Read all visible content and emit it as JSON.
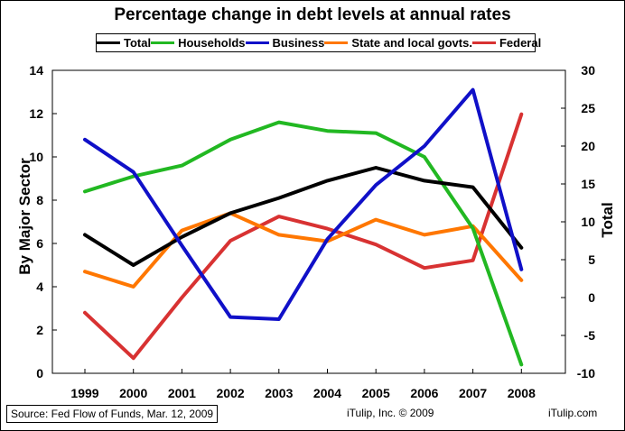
{
  "chart_data": {
    "type": "line",
    "title": "Percentage change in debt levels at annual rates",
    "ylabel_left": "By Major Sector",
    "ylabel_right": "Total",
    "ylim_left": [
      0,
      14
    ],
    "ylim_right": [
      -10,
      30
    ],
    "yticks_left": [
      "0",
      "2",
      "4",
      "6",
      "8",
      "10",
      "12",
      "14"
    ],
    "yticks_right": [
      "-10",
      "-5",
      "0",
      "5",
      "10",
      "15",
      "20",
      "25",
      "30"
    ],
    "categories": [
      "1999",
      "2000",
      "2001",
      "2002",
      "2003",
      "2004",
      "2005",
      "2006",
      "2007",
      "2008"
    ],
    "legend_position": "top",
    "series": [
      {
        "name": "Total",
        "axis": "left",
        "color": "#000000",
        "values": [
          6.4,
          5.0,
          6.3,
          7.4,
          8.1,
          8.9,
          9.5,
          8.9,
          8.6,
          5.8
        ]
      },
      {
        "name": "Households",
        "axis": "left",
        "color": "#22b822",
        "values": [
          8.4,
          9.1,
          9.6,
          10.8,
          11.6,
          11.2,
          11.1,
          10.0,
          6.7,
          0.4
        ]
      },
      {
        "name": "Business",
        "axis": "left",
        "color": "#1010c8",
        "values": [
          10.8,
          9.3,
          5.9,
          2.6,
          2.5,
          6.2,
          8.7,
          10.5,
          13.1,
          4.8
        ]
      },
      {
        "name": "State and local govts.",
        "axis": "left",
        "color": "#ff7700",
        "values": [
          4.7,
          4.0,
          6.6,
          7.4,
          6.4,
          6.1,
          7.1,
          6.4,
          6.8,
          4.3
        ]
      },
      {
        "name": "Federal",
        "axis": "right",
        "color": "#d83232",
        "values": [
          -2.0,
          -8.0,
          0.0,
          7.5,
          10.7,
          9.1,
          7.0,
          3.9,
          4.9,
          24.2
        ]
      }
    ]
  },
  "footer": {
    "source": "Source: Fed Flow of Funds, Mar. 12, 2009",
    "copyright": "iTulip, Inc. © 2009",
    "site": "iTulip.com"
  }
}
